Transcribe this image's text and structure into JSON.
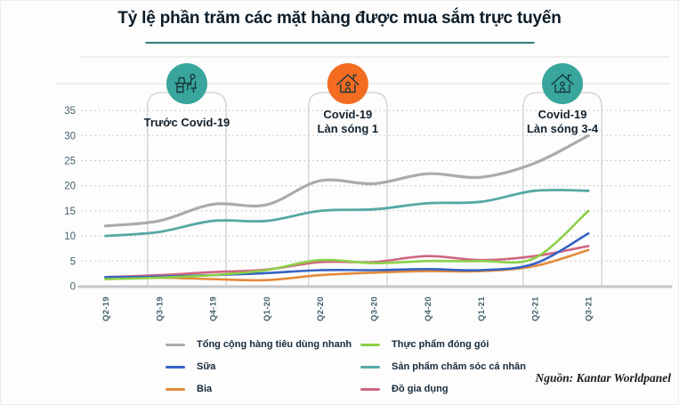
{
  "header": {
    "title": "Tỷ lệ phần trăm các mặt hàng được mua sắm trực tuyến",
    "underline_color": "#2e7d79"
  },
  "footer": {
    "source": "Nguồn: Kantar Worldpanel"
  },
  "chart_data": {
    "type": "line",
    "title": "Tỷ lệ phần trăm các mặt hàng được mua sắm trực tuyến",
    "xlabel": "",
    "ylabel": "",
    "x_labels": [
      "Q2-19",
      "Q3-19",
      "Q4-19",
      "Q1-20",
      "Q2-20",
      "Q3-20",
      "Q4-20",
      "Q1-21",
      "Q2-21",
      "Q3-21"
    ],
    "y_ticks": [
      0,
      5,
      10,
      15,
      20,
      25,
      30,
      35
    ],
    "ylim": [
      0,
      37
    ],
    "grid": "horizontal-dashed",
    "legend_position": "bottom",
    "series": [
      {
        "name": "Tổng cộng hàng tiêu dùng nhanh",
        "color": "#a9abae",
        "values": [
          12,
          13,
          16.3,
          16.2,
          21,
          20.4,
          22.4,
          21.7,
          24.5,
          30
        ]
      },
      {
        "name": "Sữa",
        "color": "#3563c4",
        "values": [
          1.8,
          1.9,
          2.2,
          2.6,
          3.2,
          3.2,
          3.4,
          3.2,
          4.5,
          10.5
        ]
      },
      {
        "name": "Bia",
        "color": "#e38a3b",
        "values": [
          1.5,
          1.7,
          1.4,
          1.2,
          2.2,
          2.7,
          3.0,
          3.0,
          4.0,
          7.2
        ]
      },
      {
        "name": "Thực phẩm đóng gói",
        "color": "#8bd046",
        "values": [
          1.4,
          1.7,
          2.2,
          3.2,
          5.2,
          4.6,
          5.0,
          5.0,
          5.6,
          15
        ]
      },
      {
        "name": "Sản phẩm chăm sóc cá nhân",
        "color": "#55a9a4",
        "values": [
          10,
          10.8,
          13,
          13,
          15,
          15.3,
          16.5,
          16.8,
          19,
          19
        ]
      },
      {
        "name": "Đồ gia dụng",
        "color": "#d06681",
        "values": [
          1.8,
          2.2,
          2.8,
          3.3,
          4.8,
          4.8,
          6.0,
          5.2,
          6.0,
          8.0
        ]
      }
    ],
    "annotations": [
      {
        "label": "Trước Covid-19",
        "icon": "office-worker",
        "color": "#38a69c",
        "span": [
          "Q3-19",
          "Q4-19"
        ]
      },
      {
        "label": "Covid-19\nLàn sóng 1",
        "icon": "stay-home",
        "color": "#f36c21",
        "span": [
          "Q2-20",
          "Q3-20"
        ]
      },
      {
        "label": "Covid-19\nLàn sóng 3-4",
        "icon": "stay-home",
        "color": "#38a69c",
        "span": [
          "Q2-21",
          "Q3-21"
        ]
      }
    ]
  }
}
